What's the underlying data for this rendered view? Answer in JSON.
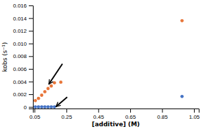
{
  "chart_data": {
    "type": "scatter",
    "title": "",
    "xlabel": "[additive] (M)",
    "ylabel": "kobs (s⁻¹)",
    "xlim": [
      0.04,
      1.08
    ],
    "ylim": [
      -0.00025,
      0.016
    ],
    "xticks": [
      0.05,
      0.25,
      0.45,
      0.65,
      0.85,
      1.05
    ],
    "yticks": [
      {
        "value": 0,
        "label": "0"
      },
      0.002,
      0.004,
      0.006,
      0.008,
      {
        "value": 0.01,
        "label": "0.010"
      },
      0.012,
      0.014,
      0.016
    ],
    "grid": false,
    "series": [
      {
        "color": "#E8763A",
        "x": [
          0.055,
          0.075,
          0.095,
          0.115,
          0.135,
          0.155,
          0.175,
          0.215,
          0.975
        ],
        "values": [
          0.001,
          0.00135,
          0.00185,
          0.0024,
          0.0029,
          0.0033,
          0.0038,
          0.0039,
          0.0136
        ]
      },
      {
        "color": "#4472C4",
        "x": [
          0.055,
          0.075,
          0.095,
          0.115,
          0.135,
          0.155,
          0.175,
          0.975
        ],
        "values": [
          1.5e-05,
          1.5e-05,
          1.5e-05,
          1.5e-05,
          1.5e-05,
          1.5e-05,
          1.5e-05,
          0.00165
        ]
      }
    ],
    "arrows": [
      {
        "x1": 0.225,
        "y1": 0.0068,
        "x2": 0.14,
        "y2": 0.0036
      },
      {
        "x1": 0.255,
        "y1": 0.00155,
        "x2": 0.185,
        "y2": 5.5e-05
      }
    ]
  }
}
